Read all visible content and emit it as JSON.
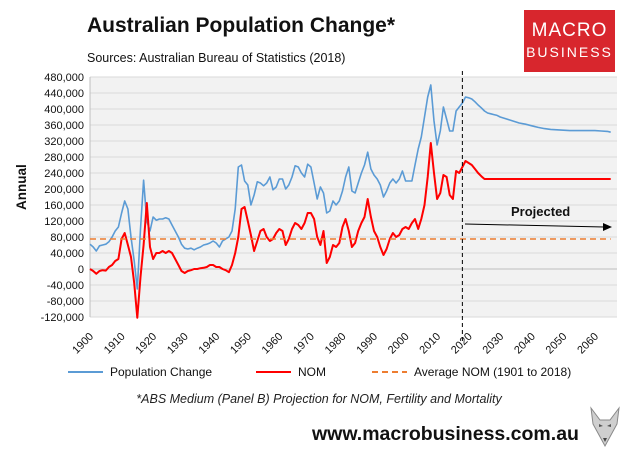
{
  "header": {
    "title": "Australian Population Change*",
    "subtitle": "Sources: Australian Bureau of Statistics (2018)"
  },
  "logo": {
    "line1": "MACRO",
    "line2": "BUSINESS"
  },
  "footer": {
    "footnote": "*ABS Medium (Panel B) Projection for NOM, Fertility and Mortality",
    "url": "www.macrobusiness.com.au"
  },
  "colors": {
    "population": "#5b9bd5",
    "nom": "#ff0000",
    "average": "#ed7d31",
    "plot_bg": "#f2f2f2",
    "logo": "#d8262d"
  },
  "chart_data": {
    "type": "line",
    "title": "Australian Population Change*",
    "ylabel": "Annual",
    "xlabel": "",
    "ylim": [
      -120000,
      480000
    ],
    "xlim": [
      1900,
      2067
    ],
    "yticks": [
      -120000,
      -80000,
      -40000,
      0,
      40000,
      80000,
      120000,
      160000,
      200000,
      240000,
      280000,
      320000,
      360000,
      400000,
      440000,
      480000
    ],
    "ytick_labels": [
      "-120,000",
      "-80,000",
      "-40,000",
      "0",
      "40,000",
      "80,000",
      "120,000",
      "160,000",
      "200,000",
      "240,000",
      "280,000",
      "320,000",
      "360,000",
      "400,000",
      "440,000",
      "480,000"
    ],
    "xticks": [
      1900,
      1910,
      1920,
      1930,
      1940,
      1950,
      1960,
      1970,
      1980,
      1990,
      2000,
      2010,
      2020,
      2030,
      2040,
      2050,
      2060
    ],
    "xtick_labels": [
      "1900",
      "1910",
      "1920",
      "1930",
      "1940",
      "1950",
      "1960",
      "1970",
      "1980",
      "1990",
      "2000",
      "2010",
      "2020",
      "2030",
      "2040",
      "2050",
      "2060"
    ],
    "projection_start": 2018,
    "annotation": "Projected",
    "series": [
      {
        "name": "Population Change",
        "points": [
          [
            1900,
            62000
          ],
          [
            1901,
            55000
          ],
          [
            1902,
            45000
          ],
          [
            1903,
            58000
          ],
          [
            1904,
            60000
          ],
          [
            1905,
            62000
          ],
          [
            1906,
            68000
          ],
          [
            1907,
            80000
          ],
          [
            1908,
            95000
          ],
          [
            1909,
            105000
          ],
          [
            1910,
            140000
          ],
          [
            1911,
            170000
          ],
          [
            1912,
            150000
          ],
          [
            1913,
            80000
          ],
          [
            1914,
            20000
          ],
          [
            1915,
            -50000
          ],
          [
            1916,
            100000
          ],
          [
            1917,
            222000
          ],
          [
            1918,
            120000
          ],
          [
            1919,
            95000
          ],
          [
            1920,
            130000
          ],
          [
            1921,
            122000
          ],
          [
            1922,
            125000
          ],
          [
            1923,
            125000
          ],
          [
            1924,
            128000
          ],
          [
            1925,
            125000
          ],
          [
            1926,
            110000
          ],
          [
            1927,
            95000
          ],
          [
            1928,
            80000
          ],
          [
            1929,
            62000
          ],
          [
            1930,
            52000
          ],
          [
            1931,
            50000
          ],
          [
            1932,
            52000
          ],
          [
            1933,
            48000
          ],
          [
            1934,
            52000
          ],
          [
            1935,
            55000
          ],
          [
            1936,
            60000
          ],
          [
            1937,
            62000
          ],
          [
            1938,
            65000
          ],
          [
            1939,
            70000
          ],
          [
            1940,
            65000
          ],
          [
            1941,
            55000
          ],
          [
            1942,
            70000
          ],
          [
            1943,
            75000
          ],
          [
            1944,
            80000
          ],
          [
            1945,
            95000
          ],
          [
            1946,
            150000
          ],
          [
            1947,
            255000
          ],
          [
            1948,
            260000
          ],
          [
            1949,
            220000
          ],
          [
            1950,
            210000
          ],
          [
            1951,
            160000
          ],
          [
            1952,
            185000
          ],
          [
            1953,
            218000
          ],
          [
            1954,
            215000
          ],
          [
            1955,
            208000
          ],
          [
            1956,
            215000
          ],
          [
            1957,
            230000
          ],
          [
            1958,
            198000
          ],
          [
            1959,
            205000
          ],
          [
            1960,
            225000
          ],
          [
            1961,
            225000
          ],
          [
            1962,
            200000
          ],
          [
            1963,
            210000
          ],
          [
            1964,
            230000
          ],
          [
            1965,
            258000
          ],
          [
            1966,
            255000
          ],
          [
            1967,
            240000
          ],
          [
            1968,
            230000
          ],
          [
            1969,
            262000
          ],
          [
            1970,
            255000
          ],
          [
            1971,
            215000
          ],
          [
            1972,
            175000
          ],
          [
            1973,
            205000
          ],
          [
            1974,
            190000
          ],
          [
            1975,
            140000
          ],
          [
            1976,
            145000
          ],
          [
            1977,
            170000
          ],
          [
            1978,
            160000
          ],
          [
            1979,
            170000
          ],
          [
            1980,
            195000
          ],
          [
            1981,
            230000
          ],
          [
            1982,
            255000
          ],
          [
            1983,
            195000
          ],
          [
            1984,
            190000
          ],
          [
            1985,
            215000
          ],
          [
            1986,
            240000
          ],
          [
            1987,
            260000
          ],
          [
            1988,
            292000
          ],
          [
            1989,
            250000
          ],
          [
            1990,
            235000
          ],
          [
            1991,
            225000
          ],
          [
            1992,
            210000
          ],
          [
            1993,
            180000
          ],
          [
            1994,
            195000
          ],
          [
            1995,
            215000
          ],
          [
            1996,
            225000
          ],
          [
            1997,
            215000
          ],
          [
            1998,
            225000
          ],
          [
            1999,
            245000
          ],
          [
            2000,
            220000
          ],
          [
            2001,
            220000
          ],
          [
            2002,
            220000
          ],
          [
            2003,
            260000
          ],
          [
            2004,
            300000
          ],
          [
            2005,
            330000
          ],
          [
            2006,
            380000
          ],
          [
            2007,
            430000
          ],
          [
            2008,
            460000
          ],
          [
            2009,
            370000
          ],
          [
            2010,
            310000
          ],
          [
            2011,
            345000
          ],
          [
            2012,
            405000
          ],
          [
            2013,
            375000
          ],
          [
            2014,
            345000
          ],
          [
            2015,
            345000
          ],
          [
            2016,
            395000
          ],
          [
            2017,
            405000
          ],
          [
            2018,
            415000
          ],
          [
            2019,
            430000
          ],
          [
            2020,
            428000
          ],
          [
            2021,
            425000
          ],
          [
            2022,
            418000
          ],
          [
            2023,
            410000
          ],
          [
            2024,
            403000
          ],
          [
            2025,
            395000
          ],
          [
            2026,
            390000
          ],
          [
            2027,
            388000
          ],
          [
            2028,
            386000
          ],
          [
            2029,
            384000
          ],
          [
            2030,
            380000
          ],
          [
            2032,
            375000
          ],
          [
            2034,
            370000
          ],
          [
            2036,
            365000
          ],
          [
            2038,
            362000
          ],
          [
            2040,
            358000
          ],
          [
            2042,
            354000
          ],
          [
            2044,
            351000
          ],
          [
            2046,
            349000
          ],
          [
            2048,
            348000
          ],
          [
            2050,
            347000
          ],
          [
            2052,
            346000
          ],
          [
            2054,
            346000
          ],
          [
            2056,
            346000
          ],
          [
            2058,
            346000
          ],
          [
            2060,
            346000
          ],
          [
            2062,
            345000
          ],
          [
            2064,
            344000
          ],
          [
            2065,
            342000
          ]
        ]
      },
      {
        "name": "NOM",
        "points": [
          [
            1900,
            0
          ],
          [
            1901,
            -5000
          ],
          [
            1902,
            -12000
          ],
          [
            1903,
            -5000
          ],
          [
            1904,
            -3000
          ],
          [
            1905,
            -4000
          ],
          [
            1906,
            5000
          ],
          [
            1907,
            10000
          ],
          [
            1908,
            20000
          ],
          [
            1909,
            25000
          ],
          [
            1910,
            75000
          ],
          [
            1911,
            90000
          ],
          [
            1912,
            60000
          ],
          [
            1913,
            30000
          ],
          [
            1914,
            -35000
          ],
          [
            1915,
            -122000
          ],
          [
            1916,
            -20000
          ],
          [
            1917,
            60000
          ],
          [
            1918,
            165000
          ],
          [
            1919,
            55000
          ],
          [
            1920,
            25000
          ],
          [
            1921,
            40000
          ],
          [
            1922,
            40000
          ],
          [
            1923,
            45000
          ],
          [
            1924,
            40000
          ],
          [
            1925,
            45000
          ],
          [
            1926,
            40000
          ],
          [
            1927,
            25000
          ],
          [
            1928,
            10000
          ],
          [
            1929,
            -5000
          ],
          [
            1930,
            -10000
          ],
          [
            1931,
            -5000
          ],
          [
            1932,
            -3000
          ],
          [
            1933,
            0
          ],
          [
            1934,
            0
          ],
          [
            1935,
            2000
          ],
          [
            1936,
            3000
          ],
          [
            1937,
            5000
          ],
          [
            1938,
            10000
          ],
          [
            1939,
            10000
          ],
          [
            1940,
            5000
          ],
          [
            1941,
            5000
          ],
          [
            1942,
            0
          ],
          [
            1943,
            -3000
          ],
          [
            1944,
            -8000
          ],
          [
            1945,
            10000
          ],
          [
            1946,
            40000
          ],
          [
            1947,
            80000
          ],
          [
            1948,
            150000
          ],
          [
            1949,
            155000
          ],
          [
            1950,
            120000
          ],
          [
            1951,
            85000
          ],
          [
            1952,
            45000
          ],
          [
            1953,
            70000
          ],
          [
            1954,
            95000
          ],
          [
            1955,
            100000
          ],
          [
            1956,
            80000
          ],
          [
            1957,
            70000
          ],
          [
            1958,
            75000
          ],
          [
            1959,
            90000
          ],
          [
            1960,
            100000
          ],
          [
            1961,
            95000
          ],
          [
            1962,
            60000
          ],
          [
            1963,
            75000
          ],
          [
            1964,
            100000
          ],
          [
            1965,
            115000
          ],
          [
            1966,
            110000
          ],
          [
            1967,
            100000
          ],
          [
            1968,
            115000
          ],
          [
            1969,
            140000
          ],
          [
            1970,
            140000
          ],
          [
            1971,
            125000
          ],
          [
            1972,
            80000
          ],
          [
            1973,
            60000
          ],
          [
            1974,
            95000
          ],
          [
            1975,
            15000
          ],
          [
            1976,
            30000
          ],
          [
            1977,
            60000
          ],
          [
            1978,
            55000
          ],
          [
            1979,
            65000
          ],
          [
            1980,
            105000
          ],
          [
            1981,
            125000
          ],
          [
            1982,
            95000
          ],
          [
            1983,
            55000
          ],
          [
            1984,
            65000
          ],
          [
            1985,
            95000
          ],
          [
            1986,
            115000
          ],
          [
            1987,
            130000
          ],
          [
            1988,
            175000
          ],
          [
            1989,
            130000
          ],
          [
            1990,
            95000
          ],
          [
            1991,
            80000
          ],
          [
            1992,
            55000
          ],
          [
            1993,
            35000
          ],
          [
            1994,
            50000
          ],
          [
            1995,
            75000
          ],
          [
            1996,
            90000
          ],
          [
            1997,
            80000
          ],
          [
            1998,
            85000
          ],
          [
            1999,
            100000
          ],
          [
            2000,
            105000
          ],
          [
            2001,
            100000
          ],
          [
            2002,
            115000
          ],
          [
            2003,
            125000
          ],
          [
            2004,
            100000
          ],
          [
            2005,
            125000
          ],
          [
            2006,
            160000
          ],
          [
            2007,
            230000
          ],
          [
            2008,
            315000
          ],
          [
            2009,
            240000
          ],
          [
            2010,
            175000
          ],
          [
            2011,
            190000
          ],
          [
            2012,
            235000
          ],
          [
            2013,
            230000
          ],
          [
            2014,
            185000
          ],
          [
            2015,
            175000
          ],
          [
            2016,
            245000
          ],
          [
            2017,
            240000
          ],
          [
            2018,
            255000
          ],
          [
            2019,
            270000
          ],
          [
            2020,
            265000
          ],
          [
            2021,
            260000
          ],
          [
            2022,
            250000
          ],
          [
            2023,
            240000
          ],
          [
            2024,
            232000
          ],
          [
            2025,
            225000
          ],
          [
            2026,
            225000
          ],
          [
            2030,
            225000
          ],
          [
            2040,
            225000
          ],
          [
            2050,
            225000
          ],
          [
            2060,
            225000
          ],
          [
            2065,
            225000
          ]
        ]
      },
      {
        "name": "Average NOM (1901 to 2018)",
        "points": [
          [
            1900,
            75000
          ],
          [
            2065,
            75000
          ]
        ]
      }
    ]
  }
}
